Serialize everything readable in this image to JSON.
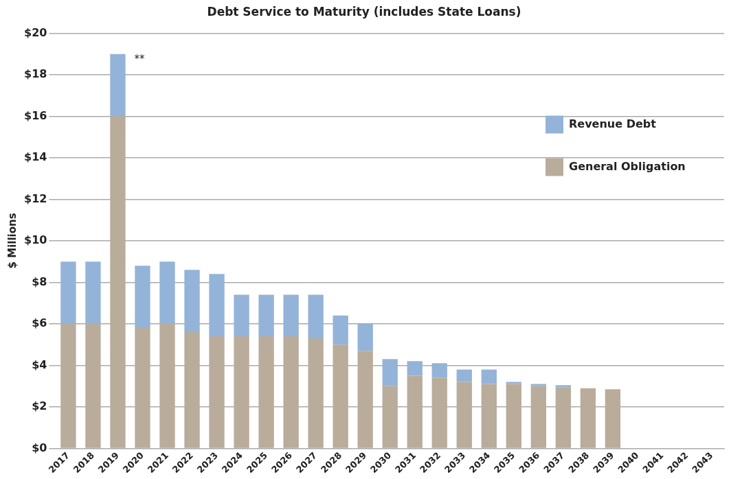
{
  "chart_data": {
    "type": "bar",
    "title": "Debt Service to Maturity (includes State Loans)",
    "ylabel": "$ Millions",
    "categories": [
      "2017",
      "2018",
      "2019",
      "2020",
      "2021",
      "2022",
      "2023",
      "2024",
      "2025",
      "2026",
      "2027",
      "2028",
      "2029",
      "2030",
      "2031",
      "2032",
      "2033",
      "2034",
      "2035",
      "2036",
      "2037",
      "2038",
      "2039",
      "2040",
      "2041",
      "2042",
      "2043"
    ],
    "stacked": true,
    "series": [
      {
        "name": "General Obligation",
        "color": "#b9ac9b",
        "values": [
          6.0,
          6.0,
          16.0,
          5.8,
          6.0,
          5.6,
          5.4,
          5.4,
          5.4,
          5.4,
          5.3,
          5.0,
          4.7,
          3.0,
          3.5,
          3.4,
          3.2,
          3.1,
          3.1,
          3.0,
          2.95,
          2.9,
          2.85,
          0,
          0,
          0,
          0
        ]
      },
      {
        "name": "Revenue Debt",
        "color": "#94b3d8",
        "values": [
          3.0,
          3.0,
          3.0,
          3.0,
          3.0,
          3.0,
          3.0,
          2.0,
          2.0,
          2.0,
          2.1,
          1.4,
          1.3,
          1.3,
          0.7,
          0.7,
          0.6,
          0.7,
          0.1,
          0.1,
          0.1,
          0,
          0,
          0,
          0,
          0,
          0
        ]
      }
    ],
    "ylim": [
      0,
      20
    ],
    "yticks": [
      {
        "value": 0,
        "label": "$0"
      },
      {
        "value": 2,
        "label": "$2"
      },
      {
        "value": 4,
        "label": "$4"
      },
      {
        "value": 6,
        "label": "$6"
      },
      {
        "value": 8,
        "label": "$8"
      },
      {
        "value": 10,
        "label": "$10"
      },
      {
        "value": 12,
        "label": "$12"
      },
      {
        "value": 14,
        "label": "$14"
      },
      {
        "value": 16,
        "label": "$16"
      },
      {
        "value": 18,
        "label": "$18"
      },
      {
        "value": 20,
        "label": "$20"
      }
    ],
    "grid": "y",
    "legend": "right",
    "annotations": [
      {
        "text": "**",
        "x": "2019",
        "y": 19
      }
    ]
  }
}
